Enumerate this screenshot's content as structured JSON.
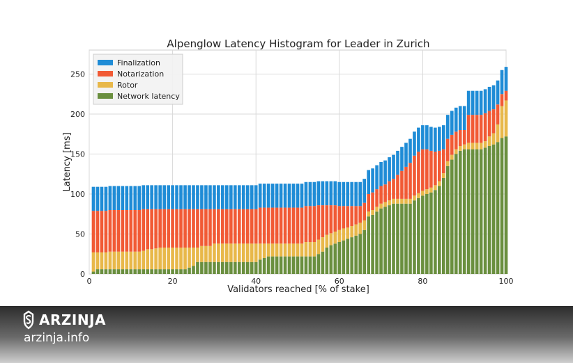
{
  "chart_data": {
    "type": "bar",
    "stacked": true,
    "title": "Alpenglow Latency Histogram for Leader in Zurich",
    "xlabel": "Validators reached [% of stake]",
    "ylabel": "Latency [ms]",
    "xlim": [
      0,
      100
    ],
    "ylim": [
      0,
      280
    ],
    "xticks": [
      0,
      20,
      40,
      60,
      80,
      100
    ],
    "yticks": [
      0,
      50,
      100,
      150,
      200,
      250
    ],
    "grid": true,
    "legend_position": "top-left",
    "x": [
      1,
      2,
      3,
      4,
      5,
      6,
      7,
      8,
      9,
      10,
      11,
      12,
      13,
      14,
      15,
      16,
      17,
      18,
      19,
      20,
      21,
      22,
      23,
      24,
      25,
      26,
      27,
      28,
      29,
      30,
      31,
      32,
      33,
      34,
      35,
      36,
      37,
      38,
      39,
      40,
      41,
      42,
      43,
      44,
      45,
      46,
      47,
      48,
      49,
      50,
      51,
      52,
      53,
      54,
      55,
      56,
      57,
      58,
      59,
      60,
      61,
      62,
      63,
      64,
      65,
      66,
      67,
      68,
      69,
      70,
      71,
      72,
      73,
      74,
      75,
      76,
      77,
      78,
      79,
      80,
      81,
      82,
      83,
      84,
      85,
      86,
      87,
      88,
      89,
      90,
      91,
      92,
      93,
      94,
      95,
      96,
      97,
      98,
      99,
      100
    ],
    "series": [
      {
        "name": "Network latency",
        "color": "#6a8f3f",
        "values": [
          3,
          6,
          6,
          6,
          6,
          6,
          6,
          6,
          6,
          6,
          6,
          6,
          6,
          6,
          6,
          6,
          6,
          6,
          6,
          6,
          6,
          6,
          6,
          8,
          10,
          15,
          15,
          15,
          15,
          15,
          15,
          15,
          15,
          15,
          15,
          15,
          15,
          15,
          15,
          15,
          18,
          20,
          22,
          22,
          22,
          22,
          22,
          22,
          22,
          22,
          22,
          22,
          22,
          22,
          25,
          28,
          33,
          36,
          38,
          40,
          42,
          44,
          46,
          48,
          50,
          55,
          72,
          74,
          78,
          82,
          84,
          86,
          88,
          88,
          88,
          88,
          88,
          92,
          95,
          98,
          100,
          102,
          105,
          110,
          120,
          135,
          143,
          150,
          154,
          156,
          156,
          156,
          156,
          156,
          158,
          160,
          162,
          165,
          170,
          172
        ]
      },
      {
        "name": "Rotor",
        "color": "#e8b84a",
        "values": [
          24,
          21,
          21,
          21,
          22,
          22,
          22,
          22,
          22,
          22,
          22,
          22,
          23,
          25,
          25,
          26,
          27,
          27,
          27,
          27,
          27,
          27,
          27,
          25,
          23,
          18,
          20,
          20,
          20,
          23,
          23,
          23,
          23,
          23,
          23,
          23,
          23,
          23,
          23,
          23,
          20,
          18,
          16,
          16,
          16,
          16,
          16,
          16,
          16,
          16,
          16,
          18,
          18,
          18,
          18,
          18,
          16,
          15,
          15,
          15,
          15,
          14,
          14,
          14,
          14,
          12,
          6,
          6,
          6,
          6,
          6,
          6,
          6,
          6,
          6,
          6,
          6,
          6,
          6,
          6,
          6,
          6,
          6,
          6,
          6,
          6,
          6,
          6,
          6,
          6,
          8,
          8,
          8,
          8,
          8,
          12,
          14,
          22,
          40,
          45
        ]
      },
      {
        "name": "Notarization",
        "color": "#f15a35",
        "values": [
          52,
          52,
          52,
          52,
          52,
          52,
          52,
          52,
          52,
          52,
          52,
          52,
          52,
          50,
          50,
          49,
          48,
          48,
          48,
          48,
          48,
          48,
          48,
          48,
          48,
          48,
          46,
          46,
          46,
          43,
          43,
          43,
          43,
          43,
          43,
          43,
          43,
          43,
          43,
          43,
          45,
          45,
          45,
          45,
          45,
          45,
          45,
          45,
          45,
          45,
          45,
          45,
          45,
          45,
          43,
          40,
          37,
          35,
          33,
          30,
          28,
          27,
          25,
          23,
          21,
          22,
          22,
          22,
          22,
          22,
          22,
          24,
          25,
          30,
          35,
          40,
          45,
          50,
          52,
          52,
          50,
          46,
          42,
          38,
          30,
          28,
          25,
          22,
          20,
          18,
          35,
          35,
          35,
          35,
          35,
          32,
          30,
          25,
          15,
          12
        ]
      },
      {
        "name": "Finalization",
        "color": "#1f8cd6",
        "values": [
          30,
          30,
          30,
          30,
          30,
          30,
          30,
          30,
          30,
          30,
          30,
          30,
          30,
          30,
          30,
          30,
          30,
          30,
          30,
          30,
          30,
          30,
          30,
          30,
          30,
          30,
          30,
          30,
          30,
          30,
          30,
          30,
          30,
          30,
          30,
          30,
          30,
          30,
          30,
          30,
          30,
          30,
          30,
          30,
          30,
          30,
          30,
          30,
          30,
          30,
          30,
          30,
          30,
          30,
          30,
          30,
          30,
          30,
          30,
          30,
          30,
          30,
          30,
          30,
          30,
          30,
          30,
          30,
          30,
          30,
          30,
          30,
          30,
          30,
          30,
          30,
          30,
          30,
          30,
          30,
          30,
          30,
          30,
          30,
          30,
          30,
          30,
          30,
          30,
          30,
          30,
          30,
          30,
          30,
          30,
          30,
          30,
          30,
          30,
          30
        ]
      }
    ],
    "legend": [
      "Finalization",
      "Notarization",
      "Rotor",
      "Network latency"
    ]
  },
  "footer": {
    "brand": "ARZINJA",
    "site": "arzinja.info"
  }
}
